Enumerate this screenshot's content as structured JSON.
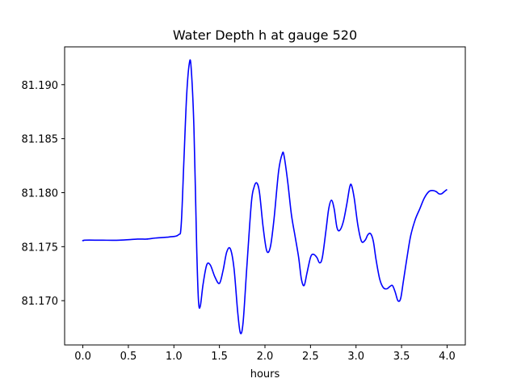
{
  "chart_data": {
    "type": "line",
    "title": "Water Depth h at gauge 520",
    "xlabel": "hours",
    "ylabel": "",
    "xlim": [
      -0.2,
      4.2
    ],
    "ylim": [
      81.1659,
      81.1935
    ],
    "x_ticks": [
      0.0,
      0.5,
      1.0,
      1.5,
      2.0,
      2.5,
      3.0,
      3.5,
      4.0
    ],
    "x_tick_labels": [
      "0.0",
      "0.5",
      "1.0",
      "1.5",
      "2.0",
      "2.5",
      "3.0",
      "3.5",
      "4.0"
    ],
    "y_ticks": [
      81.17,
      81.175,
      81.18,
      81.185,
      81.19
    ],
    "y_tick_labels": [
      "81.170",
      "81.175",
      "81.180",
      "81.185",
      "81.190"
    ],
    "grid": false,
    "legend": "none",
    "series": [
      {
        "color": "#0000ff",
        "points": [
          [
            0.0,
            81.1755
          ],
          [
            0.02,
            81.1756
          ],
          [
            0.2,
            81.1756
          ],
          [
            0.4,
            81.1756
          ],
          [
            0.6,
            81.1757
          ],
          [
            0.7,
            81.1757
          ],
          [
            0.8,
            81.1758
          ],
          [
            0.95,
            81.1759
          ],
          [
            1.05,
            81.1761
          ],
          [
            1.08,
            81.177
          ],
          [
            1.11,
            81.183
          ],
          [
            1.14,
            81.189
          ],
          [
            1.17,
            81.192
          ],
          [
            1.19,
            81.1915
          ],
          [
            1.22,
            81.186
          ],
          [
            1.25,
            81.175
          ],
          [
            1.27,
            81.17
          ],
          [
            1.29,
            81.1695
          ],
          [
            1.32,
            81.1715
          ],
          [
            1.36,
            81.1733
          ],
          [
            1.4,
            81.1733
          ],
          [
            1.45,
            81.1722
          ],
          [
            1.5,
            81.1716
          ],
          [
            1.54,
            81.1728
          ],
          [
            1.58,
            81.1745
          ],
          [
            1.62,
            81.1748
          ],
          [
            1.66,
            81.173
          ],
          [
            1.7,
            81.169
          ],
          [
            1.73,
            81.167
          ],
          [
            1.76,
            81.168
          ],
          [
            1.8,
            81.173
          ],
          [
            1.85,
            81.179
          ],
          [
            1.88,
            81.1805
          ],
          [
            1.91,
            81.1809
          ],
          [
            1.94,
            81.18
          ],
          [
            1.98,
            81.1768
          ],
          [
            2.02,
            81.1746
          ],
          [
            2.06,
            81.175
          ],
          [
            2.1,
            81.1776
          ],
          [
            2.15,
            81.182
          ],
          [
            2.19,
            81.1836
          ],
          [
            2.21,
            81.1834
          ],
          [
            2.25,
            81.181
          ],
          [
            2.29,
            81.178
          ],
          [
            2.33,
            81.176
          ],
          [
            2.37,
            81.174
          ],
          [
            2.4,
            81.172
          ],
          [
            2.43,
            81.1714
          ],
          [
            2.46,
            81.1725
          ],
          [
            2.5,
            81.174
          ],
          [
            2.53,
            81.1743
          ],
          [
            2.57,
            81.174
          ],
          [
            2.6,
            81.1735
          ],
          [
            2.63,
            81.174
          ],
          [
            2.67,
            81.1765
          ],
          [
            2.7,
            81.1785
          ],
          [
            2.73,
            81.1793
          ],
          [
            2.76,
            81.1785
          ],
          [
            2.79,
            81.1768
          ],
          [
            2.82,
            81.1765
          ],
          [
            2.86,
            81.1773
          ],
          [
            2.9,
            81.179
          ],
          [
            2.93,
            81.1805
          ],
          [
            2.95,
            81.1807
          ],
          [
            2.98,
            81.1795
          ],
          [
            3.02,
            81.177
          ],
          [
            3.06,
            81.1755
          ],
          [
            3.1,
            81.1756
          ],
          [
            3.13,
            81.1761
          ],
          [
            3.16,
            81.1762
          ],
          [
            3.19,
            81.1755
          ],
          [
            3.22,
            81.1738
          ],
          [
            3.26,
            81.172
          ],
          [
            3.3,
            81.1712
          ],
          [
            3.34,
            81.1711
          ],
          [
            3.37,
            81.1713
          ],
          [
            3.4,
            81.1714
          ],
          [
            3.43,
            81.1708
          ],
          [
            3.46,
            81.17
          ],
          [
            3.49,
            81.1702
          ],
          [
            3.52,
            81.1718
          ],
          [
            3.56,
            81.174
          ],
          [
            3.6,
            81.176
          ],
          [
            3.65,
            81.1775
          ],
          [
            3.7,
            81.1785
          ],
          [
            3.75,
            81.1795
          ],
          [
            3.8,
            81.1801
          ],
          [
            3.84,
            81.1802
          ],
          [
            3.88,
            81.1801
          ],
          [
            3.91,
            81.1799
          ],
          [
            3.94,
            81.1799
          ],
          [
            3.97,
            81.1801
          ],
          [
            4.0,
            81.1803
          ]
        ]
      }
    ]
  }
}
